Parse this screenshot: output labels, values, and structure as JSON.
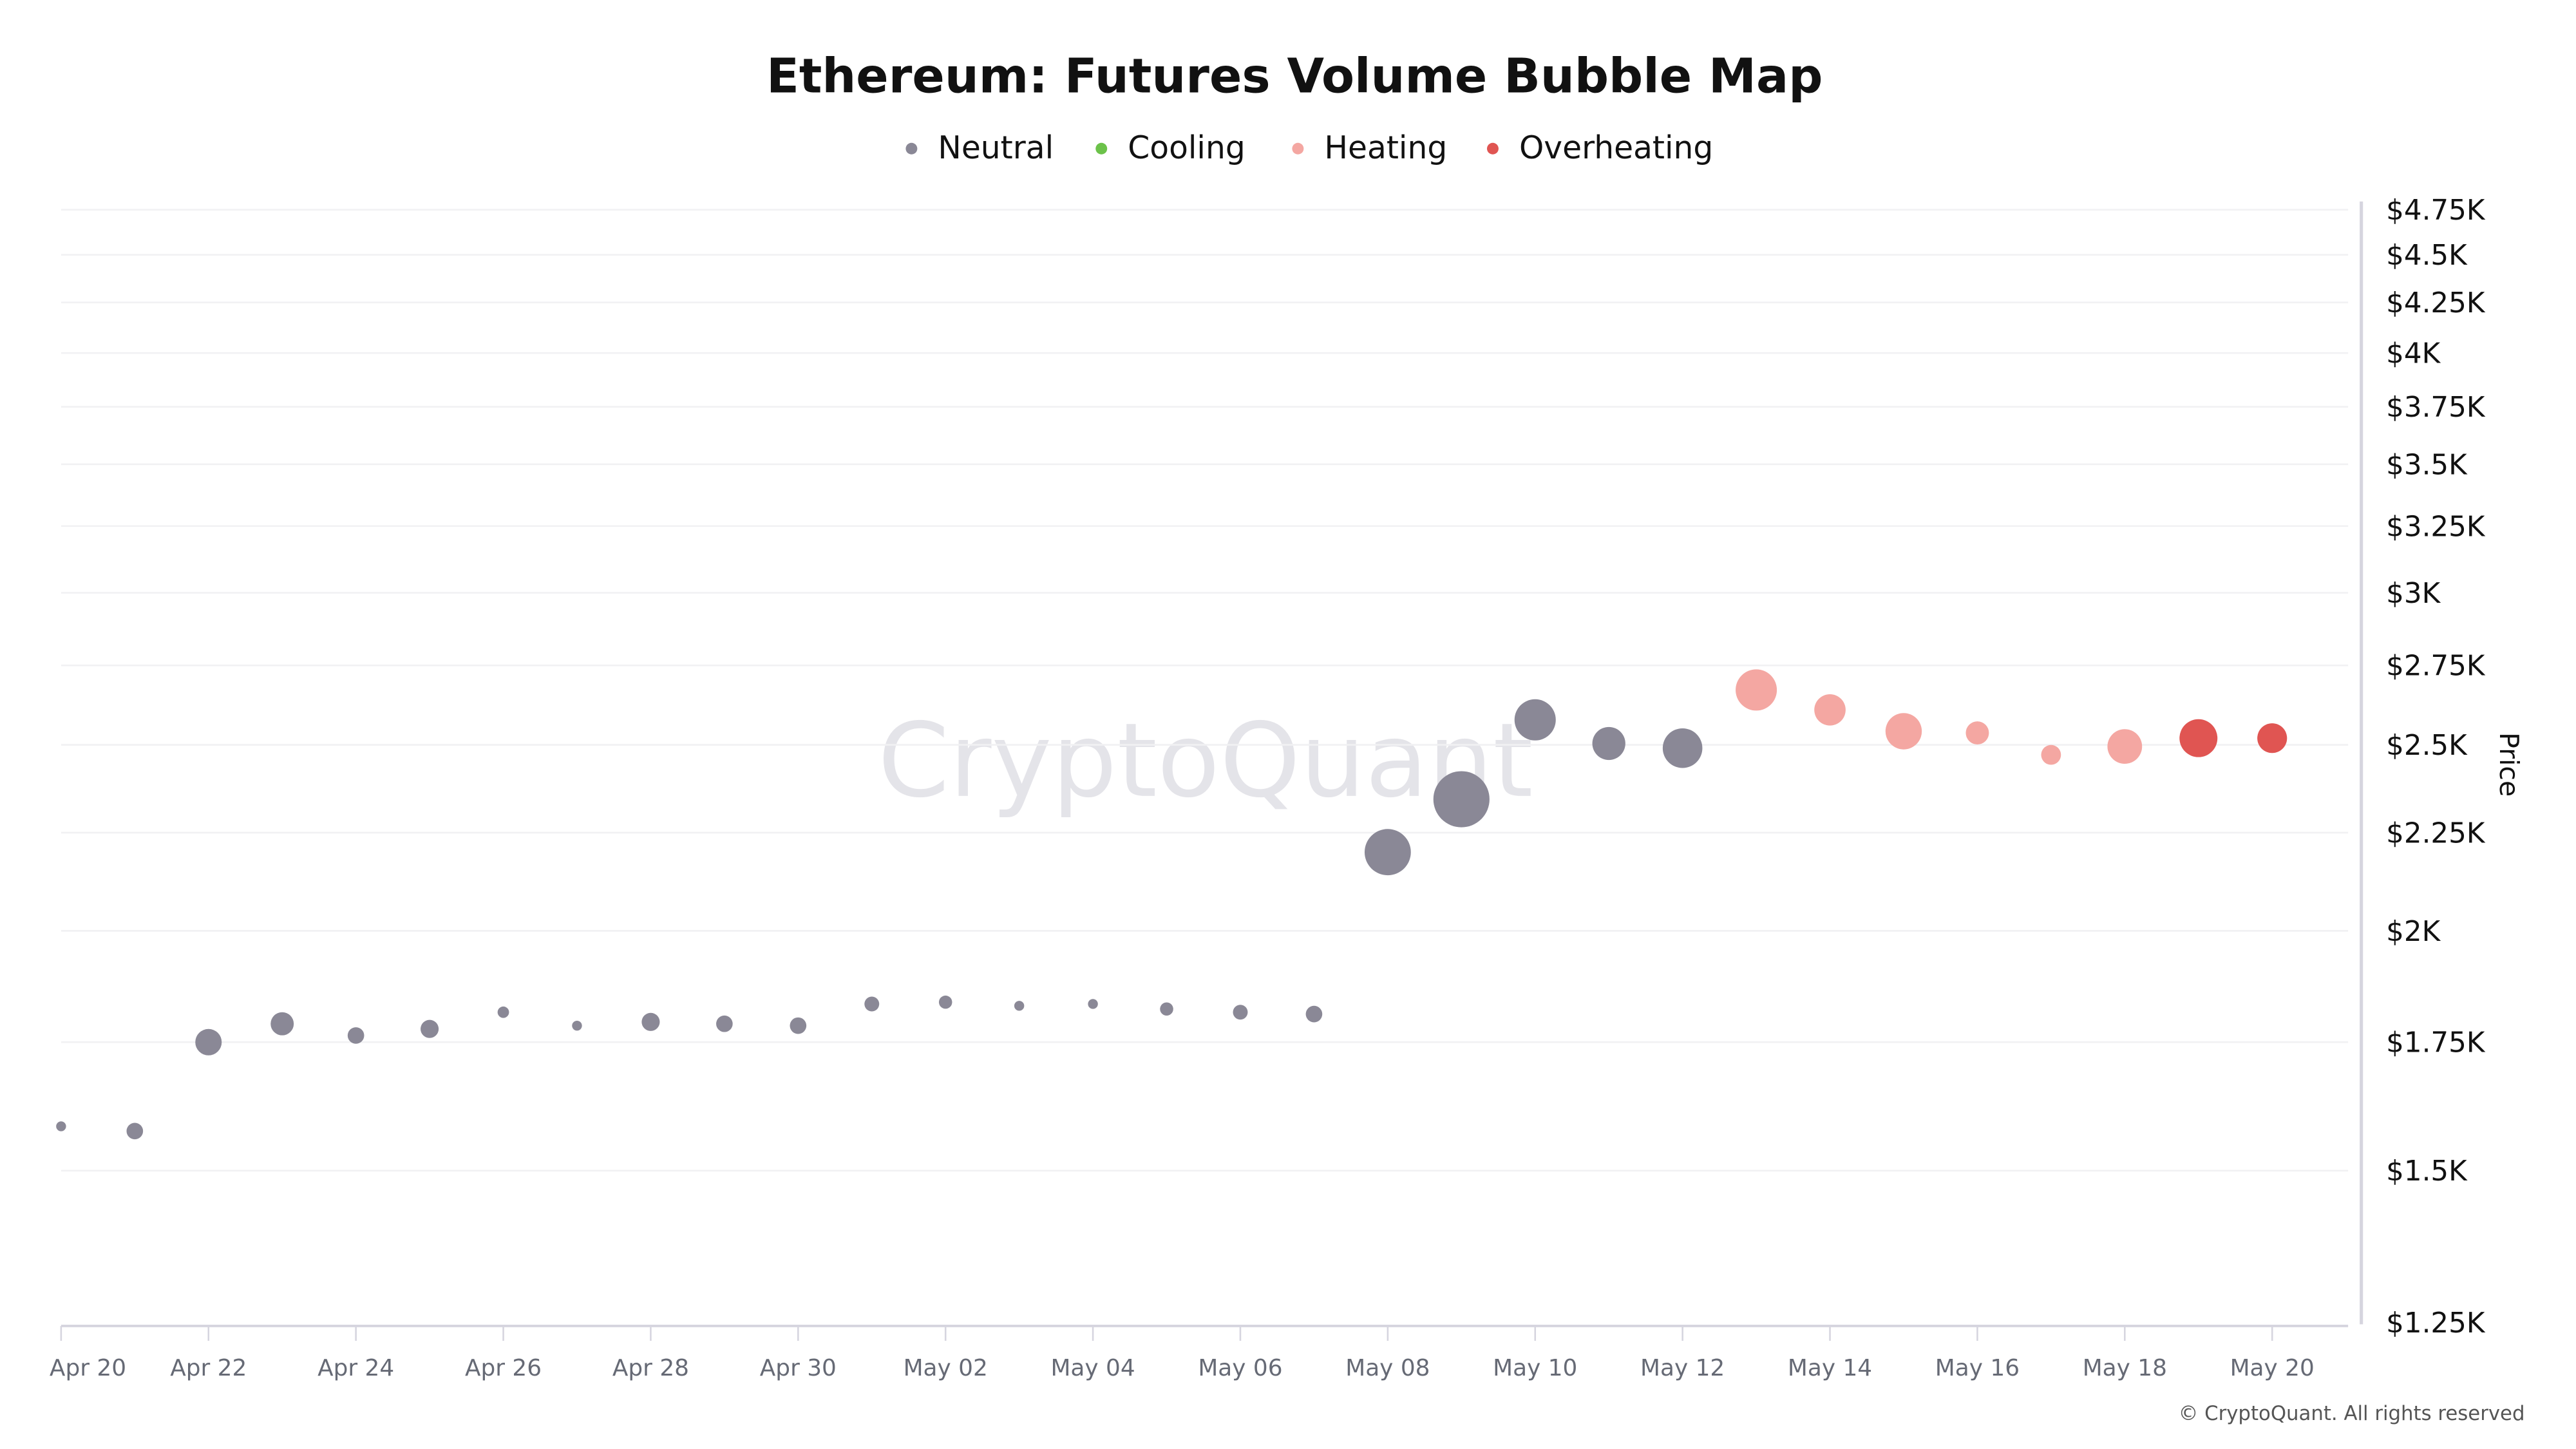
{
  "chart_data": {
    "type": "scatter",
    "title": "Ethereum: Futures Volume Bubble Map",
    "ylabel": "Price",
    "xlabel": "",
    "y_scale": "log",
    "ylim": [
      1250,
      4750
    ],
    "xlim": [
      "Apr 20",
      "May 20"
    ],
    "grid": true,
    "legend_placement": "top-center",
    "legend": [
      {
        "name": "Neutral",
        "color": "#8a8896"
      },
      {
        "name": "Cooling",
        "color": "#6cc24a"
      },
      {
        "name": "Heating",
        "color": "#f4a7a2"
      },
      {
        "name": "Overheating",
        "color": "#e05552"
      }
    ],
    "y_ticks": [
      {
        "value": 1250,
        "label": "$1.25K"
      },
      {
        "value": 1500,
        "label": "$1.5K"
      },
      {
        "value": 1750,
        "label": "$1.75K"
      },
      {
        "value": 2000,
        "label": "$2K"
      },
      {
        "value": 2250,
        "label": "$2.25K"
      },
      {
        "value": 2500,
        "label": "$2.5K"
      },
      {
        "value": 2750,
        "label": "$2.75K"
      },
      {
        "value": 3000,
        "label": "$3K"
      },
      {
        "value": 3250,
        "label": "$3.25K"
      },
      {
        "value": 3500,
        "label": "$3.5K"
      },
      {
        "value": 3750,
        "label": "$3.75K"
      },
      {
        "value": 4000,
        "label": "$4K"
      },
      {
        "value": 4250,
        "label": "$4.25K"
      },
      {
        "value": 4500,
        "label": "$4.5K"
      },
      {
        "value": 4750,
        "label": "$4.75K"
      }
    ],
    "x_ticks": [
      "Apr 20",
      "Apr 22",
      "Apr 24",
      "Apr 26",
      "Apr 28",
      "Apr 30",
      "May 02",
      "May 04",
      "May 06",
      "May 08",
      "May 10",
      "May 12",
      "May 14",
      "May 16",
      "May 18",
      "May 20"
    ],
    "points": [
      {
        "date": "Apr 20",
        "price": 1582,
        "volume_rel": 9,
        "status": "Neutral"
      },
      {
        "date": "Apr 21",
        "price": 1573,
        "volume_rel": 25,
        "status": "Neutral"
      },
      {
        "date": "Apr 22",
        "price": 1750,
        "volume_rel": 64,
        "status": "Neutral"
      },
      {
        "date": "Apr 23",
        "price": 1789,
        "volume_rel": 49,
        "status": "Neutral"
      },
      {
        "date": "Apr 24",
        "price": 1764,
        "volume_rel": 25,
        "status": "Neutral"
      },
      {
        "date": "Apr 25",
        "price": 1778,
        "volume_rel": 30,
        "status": "Neutral"
      },
      {
        "date": "Apr 26",
        "price": 1814,
        "volume_rel": 12,
        "status": "Neutral"
      },
      {
        "date": "Apr 27",
        "price": 1785,
        "volume_rel": 9,
        "status": "Neutral"
      },
      {
        "date": "Apr 28",
        "price": 1793,
        "volume_rel": 30,
        "status": "Neutral"
      },
      {
        "date": "Apr 29",
        "price": 1789,
        "volume_rel": 25,
        "status": "Neutral"
      },
      {
        "date": "Apr 30",
        "price": 1785,
        "volume_rel": 25,
        "status": "Neutral"
      },
      {
        "date": "May 01",
        "price": 1832,
        "volume_rel": 20,
        "status": "Neutral"
      },
      {
        "date": "May 02",
        "price": 1836,
        "volume_rel": 16,
        "status": "Neutral"
      },
      {
        "date": "May 03",
        "price": 1828,
        "volume_rel": 9,
        "status": "Neutral"
      },
      {
        "date": "May 04",
        "price": 1832,
        "volume_rel": 9,
        "status": "Neutral"
      },
      {
        "date": "May 05",
        "price": 1821,
        "volume_rel": 16,
        "status": "Neutral"
      },
      {
        "date": "May 06",
        "price": 1814,
        "volume_rel": 20,
        "status": "Neutral"
      },
      {
        "date": "May 07",
        "price": 1810,
        "volume_rel": 25,
        "status": "Neutral"
      },
      {
        "date": "May 08",
        "price": 2198,
        "volume_rel": 196,
        "status": "Neutral"
      },
      {
        "date": "May 09",
        "price": 2342,
        "volume_rel": 289,
        "status": "Neutral"
      },
      {
        "date": "May 10",
        "price": 2576,
        "volume_rel": 156,
        "status": "Neutral"
      },
      {
        "date": "May 11",
        "price": 2504,
        "volume_rel": 100,
        "status": "Neutral"
      },
      {
        "date": "May 12",
        "price": 2490,
        "volume_rel": 144,
        "status": "Neutral"
      },
      {
        "date": "May 13",
        "price": 2670,
        "volume_rel": 156,
        "status": "Heating"
      },
      {
        "date": "May 14",
        "price": 2607,
        "volume_rel": 90,
        "status": "Heating"
      },
      {
        "date": "May 15",
        "price": 2541,
        "volume_rel": 121,
        "status": "Heating"
      },
      {
        "date": "May 16",
        "price": 2536,
        "volume_rel": 49,
        "status": "Heating"
      },
      {
        "date": "May 17",
        "price": 2470,
        "volume_rel": 36,
        "status": "Heating"
      },
      {
        "date": "May 18",
        "price": 2495,
        "volume_rel": 110,
        "status": "Heating"
      },
      {
        "date": "May 19",
        "price": 2520,
        "volume_rel": 132,
        "status": "Overheating"
      },
      {
        "date": "May 20",
        "price": 2520,
        "volume_rel": 81,
        "status": "Overheating"
      }
    ]
  },
  "watermark": "CryptoQuant",
  "copyright": "© CryptoQuant. All rights reserved"
}
